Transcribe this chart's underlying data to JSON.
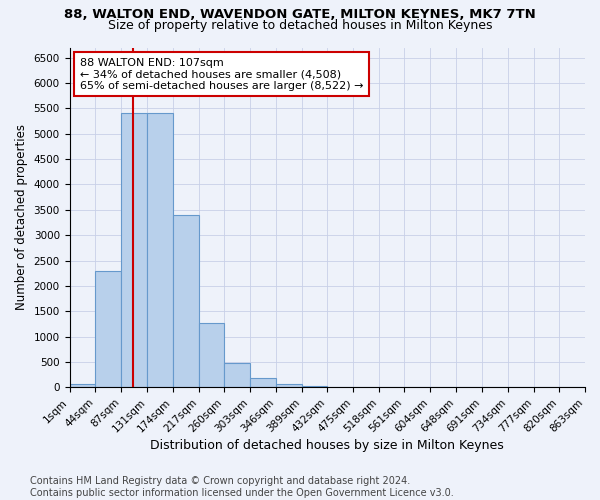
{
  "title1": "88, WALTON END, WAVENDON GATE, MILTON KEYNES, MK7 7TN",
  "title2": "Size of property relative to detached houses in Milton Keynes",
  "xlabel": "Distribution of detached houses by size in Milton Keynes",
  "ylabel": "Number of detached properties",
  "bin_edges": [
    1,
    44,
    87,
    131,
    174,
    217,
    260,
    303,
    346,
    389,
    432,
    475,
    518,
    561,
    604,
    648,
    691,
    734,
    777,
    820,
    863
  ],
  "bar_heights": [
    75,
    2300,
    5400,
    5400,
    3400,
    1270,
    480,
    190,
    75,
    20,
    10,
    5,
    3,
    2,
    1,
    1,
    0,
    0,
    0,
    0
  ],
  "bar_color": "#b8d0eb",
  "bar_edgecolor": "#6699cc",
  "vline_x": 107,
  "vline_color": "#cc0000",
  "annotation_text": "88 WALTON END: 107sqm\n← 34% of detached houses are smaller (4,508)\n65% of semi-detached houses are larger (8,522) →",
  "annotation_box_color": "white",
  "annotation_box_edgecolor": "#cc0000",
  "ylim": [
    0,
    6700
  ],
  "yticks": [
    0,
    500,
    1000,
    1500,
    2000,
    2500,
    3000,
    3500,
    4000,
    4500,
    5000,
    5500,
    6000,
    6500
  ],
  "footnote": "Contains HM Land Registry data © Crown copyright and database right 2024.\nContains public sector information licensed under the Open Government Licence v3.0.",
  "background_color": "#eef2fa",
  "grid_color": "#c8d0e8",
  "title1_fontsize": 9.5,
  "title2_fontsize": 9,
  "xlabel_fontsize": 9,
  "ylabel_fontsize": 8.5,
  "tick_fontsize": 7.5,
  "annotation_fontsize": 8,
  "footnote_fontsize": 7
}
